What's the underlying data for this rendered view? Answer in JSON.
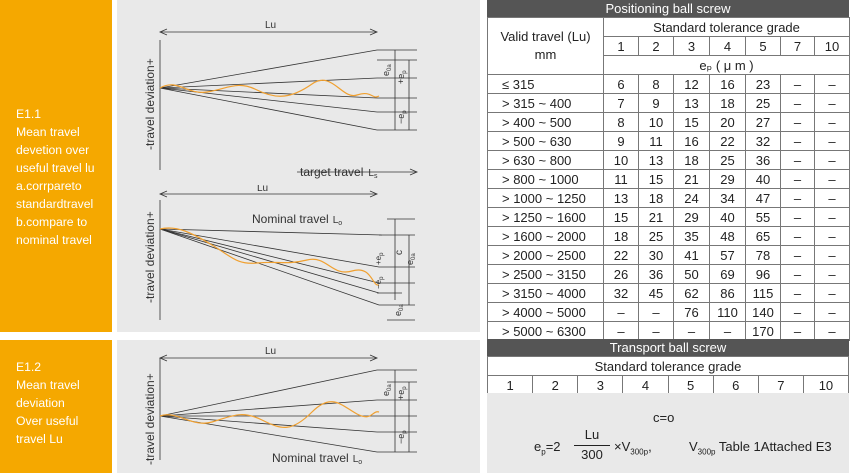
{
  "sections": {
    "e11": {
      "title": "E1.1",
      "lines": [
        "Mean travel",
        "devetion over",
        "useful travel lu",
        "a.corrpareto",
        "standardtravel",
        "b.compare to",
        "nominal travel"
      ]
    },
    "e12": {
      "title": "E1.2",
      "lines": [
        "Mean travel",
        "deviation",
        "Over useful",
        "travel Lu"
      ]
    }
  },
  "diagrams": {
    "d1": {
      "lu": "Lu",
      "yaxis": "-travel deviation+",
      "ep": "e",
      "ep_sub": "p",
      "e0a": "e",
      "e0a_sub": "0a",
      "plus_ep": "+e",
      "minus_ep": "−e",
      "xlabel": "target travel",
      "ls": "L",
      "ls_sub": "s"
    },
    "d2": {
      "lu": "Lu",
      "yaxis": "-travel deviation+",
      "nominal": "Nominal travel",
      "lo": "L",
      "lo_sub": "o",
      "c": "c",
      "plus_ep": "+e",
      "minus_ep": "−e",
      "e0a": "e",
      "e0a_sub": "0a",
      "e0a2": "e",
      "e0a2_sub": "0a"
    },
    "d3": {
      "lu": "Lu",
      "yaxis": "-travel deviation+",
      "e0a": "e",
      "e0a_sub": "0a",
      "plus_ep": "+e",
      "minus_ep": "−e",
      "nominal": "Nominal travel",
      "lo": "L",
      "lo_sub": "o"
    }
  },
  "positioning": {
    "title": "Positioning ball screw",
    "valid_travel": "Valid travel (Lu)",
    "mm": "mm",
    "grade_header": "Standard tolerance grade",
    "grades": [
      "1",
      "2",
      "3",
      "4",
      "5",
      "7",
      "10"
    ],
    "unit_row": "eₚ ( μ m )",
    "rows": [
      {
        "range": "≤ 315",
        "v": [
          "6",
          "8",
          "12",
          "16",
          "23",
          "–",
          "–"
        ]
      },
      {
        "range": "> 315 ~ 400",
        "v": [
          "7",
          "9",
          "13",
          "18",
          "25",
          "–",
          "–"
        ]
      },
      {
        "range": "> 400 ~ 500",
        "v": [
          "8",
          "10",
          "15",
          "20",
          "27",
          "–",
          "–"
        ]
      },
      {
        "range": "> 500 ~ 630",
        "v": [
          "9",
          "11",
          "16",
          "22",
          "32",
          "–",
          "–"
        ]
      },
      {
        "range": "> 630 ~ 800",
        "v": [
          "10",
          "13",
          "18",
          "25",
          "36",
          "–",
          "–"
        ]
      },
      {
        "range": "> 800 ~ 1000",
        "v": [
          "11",
          "15",
          "21",
          "29",
          "40",
          "–",
          "–"
        ]
      },
      {
        "range": "> 1000 ~ 1250",
        "v": [
          "13",
          "18",
          "24",
          "34",
          "47",
          "–",
          "–"
        ]
      },
      {
        "range": "> 1250 ~ 1600",
        "v": [
          "15",
          "21",
          "29",
          "40",
          "55",
          "–",
          "–"
        ]
      },
      {
        "range": "> 1600 ~ 2000",
        "v": [
          "18",
          "25",
          "35",
          "48",
          "65",
          "–",
          "–"
        ]
      },
      {
        "range": "> 2000 ~ 2500",
        "v": [
          "22",
          "30",
          "41",
          "57",
          "78",
          "–",
          "–"
        ]
      },
      {
        "range": "> 2500 ~ 3150",
        "v": [
          "26",
          "36",
          "50",
          "69",
          "96",
          "–",
          "–"
        ]
      },
      {
        "range": "> 3150 ~ 4000",
        "v": [
          "32",
          "45",
          "62",
          "86",
          "115",
          "–",
          "–"
        ]
      },
      {
        "range": "> 4000 ~ 5000",
        "v": [
          "–",
          "–",
          "76",
          "110",
          "140",
          "–",
          "–"
        ]
      },
      {
        "range": "> 5000 ~ 6300",
        "v": [
          "–",
          "–",
          "–",
          "–",
          "170",
          "–",
          "–"
        ]
      }
    ]
  },
  "transport": {
    "title": "Transport ball screw",
    "grade_header": "Standard tolerance grade",
    "grades": [
      "1",
      "2",
      "3",
      "4",
      "5",
      "6",
      "7",
      "10"
    ],
    "c_eq": "c=o",
    "ep_eq": "e",
    "ep_sub": "p",
    "eq2": "=2",
    "frac_num": "Lu",
    "frac_den": "300",
    "times_v": "×V",
    "v_sub": "300p",
    "comma": ",",
    "v2": "V",
    "v2_sub": "300p",
    "note": "Table 1Attached E3"
  }
}
